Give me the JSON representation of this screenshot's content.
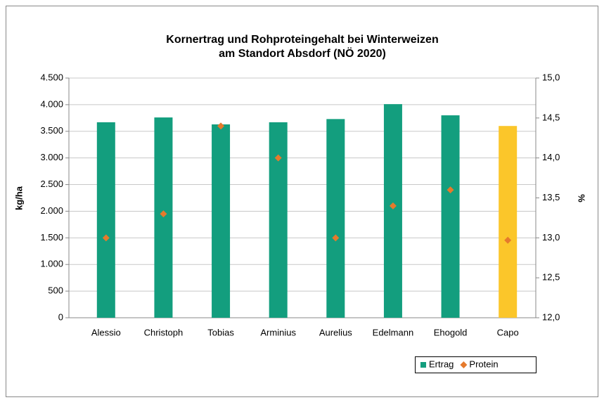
{
  "chart_data": {
    "type": "bar",
    "title": [
      "Kornertrag und Rohproteingehalt bei Winterweizen",
      "am Standort Absdorf (NÖ 2020)"
    ],
    "y_label": "kg/ha",
    "y2_label": "%",
    "categories": [
      "Alessio",
      "Christoph",
      "Tobias",
      "Arminius",
      "Aurelius",
      "Edelmann",
      "Ehogold",
      "Capo"
    ],
    "series": [
      {
        "name": "Ertrag",
        "type": "bar",
        "color": "#139e7e",
        "point_colors": [
          "#139e7e",
          "#139e7e",
          "#139e7e",
          "#139e7e",
          "#139e7e",
          "#139e7e",
          "#139e7e",
          "#fbc62a"
        ],
        "values": [
          3670,
          3760,
          3630,
          3670,
          3730,
          4010,
          3800,
          3600
        ]
      },
      {
        "name": "Protein",
        "type": "scatter",
        "axis": "y2",
        "color": "#e57a2c",
        "values": [
          13.0,
          13.3,
          14.4,
          14.0,
          13.0,
          13.4,
          13.6,
          12.97
        ]
      }
    ],
    "ylim": [
      0,
      4500
    ],
    "yticks": [
      0,
      {
        "value": 500,
        "label": "500"
      },
      {
        "value": 1000,
        "label": "1.000"
      },
      {
        "value": 1500,
        "label": "1.500"
      },
      {
        "value": 2000,
        "label": "2.000"
      },
      {
        "value": 2500,
        "label": "2.500"
      },
      {
        "value": 3000,
        "label": "3.000"
      },
      {
        "value": 3500,
        "label": "3.500"
      },
      {
        "value": 4000,
        "label": "4.000"
      },
      {
        "value": 4500,
        "label": "4.500"
      }
    ],
    "y2lim": [
      12,
      15
    ],
    "y2ticks": [
      {
        "value": 12,
        "label": "12,0"
      },
      {
        "value": 12.5,
        "label": "12,5"
      },
      {
        "value": 13,
        "label": "13,0"
      },
      {
        "value": 13.5,
        "label": "13,5"
      },
      {
        "value": 14,
        "label": "14,0"
      },
      {
        "value": 14.5,
        "label": "14,5"
      },
      {
        "value": 15,
        "label": "15,0"
      }
    ],
    "grid": true,
    "legend": "bottom-right"
  }
}
